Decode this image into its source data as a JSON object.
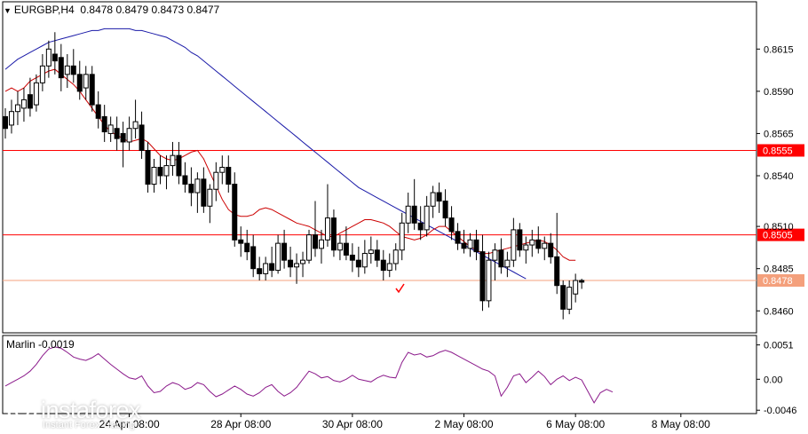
{
  "header": {
    "symbol": "EURGBP,H4",
    "ohlc": "0.8478 0.8479 0.8473 0.8477"
  },
  "indicator": {
    "name": "Marlin",
    "value": "-0.0019",
    "ticks": [
      "0.0051",
      "0.00",
      "-0.0046"
    ],
    "tick_values": [
      0.0051,
      0.0,
      -0.0046
    ],
    "range": [
      -0.0051,
      0.0065
    ]
  },
  "brand": {
    "name": "instaforex",
    "tagline": "Instant Forex Trading"
  },
  "chart_data": {
    "type": "candlestick",
    "symbol": "EURGBP",
    "timeframe": "H4",
    "ylim": [
      0.8447,
      0.8643
    ],
    "y_ticks": [
      "0.8615",
      "0.8590",
      "0.8565",
      "0.8540",
      "0.8510",
      "0.8485",
      "0.8460"
    ],
    "y_tick_values": [
      0.8615,
      0.859,
      0.8565,
      0.854,
      0.851,
      0.8485,
      0.846
    ],
    "x_labels": [
      "24 Apr 08:00",
      "28 Apr 08:00",
      "30 Apr 08:00",
      "2 May 08:00",
      "6 May 08:00",
      "8 May 08:00"
    ],
    "x_label_positions": [
      20,
      38,
      56,
      74,
      92,
      109
    ],
    "levels": [
      {
        "value": 0.8555,
        "label": "0.8555",
        "color": "#ff0000"
      },
      {
        "value": 0.8505,
        "label": "0.8505",
        "color": "#ff0000"
      },
      {
        "value": 0.8478,
        "label": "0.8478",
        "color": "#f4a07c"
      }
    ],
    "colors": {
      "bull": "#ffffff",
      "bear": "#000000",
      "ma_fast": "#cc0000",
      "ma_slow": "#1a1aa8",
      "oscillator": "#8b1a8b",
      "checkmark": "#ff0000"
    },
    "candles": [
      [
        0.8575,
        0.858,
        0.8562,
        0.8568
      ],
      [
        0.857,
        0.8585,
        0.8565,
        0.8578
      ],
      [
        0.8578,
        0.859,
        0.857,
        0.8582
      ],
      [
        0.858,
        0.8592,
        0.8572,
        0.8585
      ],
      [
        0.8588,
        0.8598,
        0.8575,
        0.858
      ],
      [
        0.8582,
        0.86,
        0.8578,
        0.8595
      ],
      [
        0.8595,
        0.8612,
        0.859,
        0.8605
      ],
      [
        0.8605,
        0.862,
        0.8598,
        0.8615
      ],
      [
        0.8612,
        0.8625,
        0.86,
        0.8608
      ],
      [
        0.861,
        0.8618,
        0.859,
        0.8598
      ],
      [
        0.86,
        0.8612,
        0.8592,
        0.8605
      ],
      [
        0.8605,
        0.8615,
        0.8595,
        0.86
      ],
      [
        0.86,
        0.8608,
        0.8585,
        0.859
      ],
      [
        0.8592,
        0.8605,
        0.8585,
        0.86
      ],
      [
        0.86,
        0.8605,
        0.8578,
        0.8582
      ],
      [
        0.8582,
        0.859,
        0.8568,
        0.8574
      ],
      [
        0.8575,
        0.8582,
        0.856,
        0.8566
      ],
      [
        0.8565,
        0.8575,
        0.856,
        0.857
      ],
      [
        0.8568,
        0.8575,
        0.8555,
        0.8562
      ],
      [
        0.8565,
        0.8572,
        0.8545,
        0.856
      ],
      [
        0.856,
        0.8575,
        0.8555,
        0.8568
      ],
      [
        0.8568,
        0.8585,
        0.8562,
        0.8572
      ],
      [
        0.857,
        0.8578,
        0.855,
        0.8555
      ],
      [
        0.8555,
        0.856,
        0.853,
        0.8535
      ],
      [
        0.8535,
        0.855,
        0.853,
        0.8545
      ],
      [
        0.8545,
        0.8552,
        0.8535,
        0.854
      ],
      [
        0.854,
        0.8552,
        0.8532,
        0.8546
      ],
      [
        0.8546,
        0.856,
        0.854,
        0.8552
      ],
      [
        0.8552,
        0.856,
        0.8535,
        0.854
      ],
      [
        0.854,
        0.8548,
        0.853,
        0.8535
      ],
      [
        0.8535,
        0.8545,
        0.8522,
        0.853
      ],
      [
        0.853,
        0.8542,
        0.8518,
        0.8538
      ],
      [
        0.8538,
        0.8545,
        0.8518,
        0.8522
      ],
      [
        0.8522,
        0.8535,
        0.8512,
        0.8532
      ],
      [
        0.8532,
        0.8548,
        0.8525,
        0.8542
      ],
      [
        0.8542,
        0.8552,
        0.8535,
        0.8545
      ],
      [
        0.8545,
        0.8552,
        0.853,
        0.8535
      ],
      [
        0.8535,
        0.8542,
        0.8498,
        0.8502
      ],
      [
        0.8502,
        0.851,
        0.8492,
        0.85
      ],
      [
        0.85,
        0.8508,
        0.849,
        0.8495
      ],
      [
        0.8498,
        0.8505,
        0.848,
        0.8485
      ],
      [
        0.8485,
        0.8492,
        0.8478,
        0.8482
      ],
      [
        0.8482,
        0.8492,
        0.8478,
        0.8488
      ],
      [
        0.8488,
        0.8498,
        0.848,
        0.8484
      ],
      [
        0.8484,
        0.8505,
        0.8482,
        0.85
      ],
      [
        0.85,
        0.8508,
        0.8485,
        0.849
      ],
      [
        0.849,
        0.8498,
        0.848,
        0.8486
      ],
      [
        0.8486,
        0.8494,
        0.8476,
        0.8488
      ],
      [
        0.8488,
        0.8495,
        0.848,
        0.849
      ],
      [
        0.849,
        0.8508,
        0.8488,
        0.8505
      ],
      [
        0.8505,
        0.8525,
        0.8492,
        0.8497
      ],
      [
        0.8497,
        0.8508,
        0.8488,
        0.8502
      ],
      [
        0.8502,
        0.8535,
        0.8498,
        0.8515
      ],
      [
        0.8515,
        0.852,
        0.8492,
        0.8496
      ],
      [
        0.8496,
        0.8505,
        0.849,
        0.85
      ],
      [
        0.85,
        0.851,
        0.849,
        0.8493
      ],
      [
        0.8493,
        0.85,
        0.8483,
        0.849
      ],
      [
        0.849,
        0.8498,
        0.848,
        0.8486
      ],
      [
        0.8486,
        0.8502,
        0.8482,
        0.8494
      ],
      [
        0.8494,
        0.8504,
        0.8488,
        0.8496
      ],
      [
        0.8496,
        0.8502,
        0.8486,
        0.849
      ],
      [
        0.849,
        0.8496,
        0.8478,
        0.8484
      ],
      [
        0.8484,
        0.8494,
        0.848,
        0.8488
      ],
      [
        0.8488,
        0.85,
        0.8484,
        0.8496
      ],
      [
        0.8496,
        0.8518,
        0.849,
        0.8512
      ],
      [
        0.8512,
        0.853,
        0.8506,
        0.8522
      ],
      [
        0.8522,
        0.8538,
        0.8508,
        0.8512
      ],
      [
        0.8512,
        0.8522,
        0.8502,
        0.8508
      ],
      [
        0.8508,
        0.8528,
        0.8504,
        0.8522
      ],
      [
        0.8522,
        0.8534,
        0.8515,
        0.853
      ],
      [
        0.853,
        0.8536,
        0.8518,
        0.8525
      ],
      [
        0.8525,
        0.8532,
        0.851,
        0.8515
      ],
      [
        0.8515,
        0.8522,
        0.8502,
        0.8507
      ],
      [
        0.8507,
        0.8512,
        0.8496,
        0.85
      ],
      [
        0.85,
        0.8508,
        0.8494,
        0.8497
      ],
      [
        0.8497,
        0.8506,
        0.8492,
        0.8502
      ],
      [
        0.8502,
        0.8508,
        0.849,
        0.8495
      ],
      [
        0.8495,
        0.8505,
        0.846,
        0.8466
      ],
      [
        0.8466,
        0.8495,
        0.8462,
        0.849
      ],
      [
        0.849,
        0.85,
        0.8478,
        0.8496
      ],
      [
        0.8496,
        0.8503,
        0.8482,
        0.8486
      ],
      [
        0.8486,
        0.8495,
        0.848,
        0.849
      ],
      [
        0.849,
        0.8515,
        0.8486,
        0.8508
      ],
      [
        0.8508,
        0.8512,
        0.8492,
        0.8496
      ],
      [
        0.8496,
        0.8504,
        0.8488,
        0.8499
      ],
      [
        0.8499,
        0.8508,
        0.8492,
        0.8502
      ],
      [
        0.8502,
        0.851,
        0.8494,
        0.8497
      ],
      [
        0.8497,
        0.8504,
        0.849,
        0.85
      ],
      [
        0.85,
        0.8506,
        0.8488,
        0.8492
      ],
      [
        0.8492,
        0.8518,
        0.847,
        0.8475
      ],
      [
        0.8475,
        0.8478,
        0.8455,
        0.8461
      ],
      [
        0.8461,
        0.8478,
        0.8458,
        0.8474
      ],
      [
        0.847,
        0.8482,
        0.8465,
        0.8478
      ],
      [
        0.8478,
        0.8479,
        0.8473,
        0.8477
      ]
    ],
    "ma_fast": [
      0.859,
      0.8592,
      0.859,
      0.8592,
      0.8596,
      0.8598,
      0.86,
      0.8602,
      0.8603,
      0.86,
      0.8597,
      0.8594,
      0.859,
      0.8585,
      0.858,
      0.8575,
      0.857,
      0.8566,
      0.8564,
      0.8562,
      0.856,
      0.8561,
      0.8562,
      0.856,
      0.8556,
      0.8552,
      0.855,
      0.8549,
      0.855,
      0.8552,
      0.8554,
      0.8555,
      0.855,
      0.8542,
      0.8534,
      0.8526,
      0.852,
      0.8517,
      0.8516,
      0.8516,
      0.8517,
      0.852,
      0.8521,
      0.852,
      0.8518,
      0.8516,
      0.8514,
      0.8512,
      0.8511,
      0.851,
      0.8508,
      0.8506,
      0.8504,
      0.8504,
      0.8506,
      0.8508,
      0.851,
      0.8512,
      0.8514,
      0.8514,
      0.8513,
      0.8512,
      0.851,
      0.8507,
      0.8504,
      0.8503,
      0.8502,
      0.8503,
      0.8505,
      0.8508,
      0.851,
      0.851,
      0.8507,
      0.8504,
      0.8501,
      0.8498,
      0.8496,
      0.8494,
      0.8494,
      0.8495,
      0.8496,
      0.8497,
      0.8498,
      0.8499,
      0.85,
      0.8501,
      0.8502,
      0.8501,
      0.8499,
      0.8496,
      0.8492,
      0.849,
      0.849
    ],
    "ma_slow": [
      0.8603,
      0.8606,
      0.8609,
      0.8611,
      0.8613,
      0.8615,
      0.8617,
      0.8619,
      0.862,
      0.8621,
      0.8622,
      0.8623,
      0.8624,
      0.8625,
      0.8626,
      0.8626,
      0.8627,
      0.8627,
      0.8627,
      0.8627,
      0.8627,
      0.8626,
      0.8626,
      0.8625,
      0.8624,
      0.8623,
      0.8622,
      0.862,
      0.8618,
      0.8616,
      0.8613,
      0.8611,
      0.8608,
      0.8605,
      0.8602,
      0.8599,
      0.8596,
      0.8593,
      0.859,
      0.8587,
      0.8584,
      0.8581,
      0.8578,
      0.8575,
      0.8572,
      0.8569,
      0.8566,
      0.8563,
      0.856,
      0.8557,
      0.8554,
      0.8551,
      0.8548,
      0.8545,
      0.8542,
      0.8539,
      0.8536,
      0.8533,
      0.8531,
      0.8529,
      0.8527,
      0.8525,
      0.8523,
      0.8521,
      0.8519,
      0.8517,
      0.8515,
      0.8513,
      0.8511,
      0.8509,
      0.8507,
      0.8505,
      0.8503,
      0.8501,
      0.8499,
      0.8497,
      0.8495,
      0.8493,
      0.8491,
      0.8489,
      0.8487,
      0.8485,
      0.8483,
      0.8481,
      0.8479
    ],
    "oscillator": [
      -0.001,
      -0.0005,
      0.0,
      0.0005,
      0.0012,
      0.0022,
      0.0035,
      0.0045,
      0.0048,
      0.0046,
      0.004,
      0.0033,
      0.003,
      0.0028,
      0.0032,
      0.0038,
      0.003,
      0.0022,
      0.0015,
      0.0008,
      0.0002,
      0.0,
      0.0005,
      -0.001,
      -0.002,
      -0.0018,
      -0.001,
      -0.0005,
      -0.0008,
      -0.0015,
      -0.0012,
      -0.0005,
      -0.0008,
      -0.0018,
      -0.0026,
      -0.0022,
      -0.0016,
      -0.001,
      -0.0015,
      -0.0022,
      -0.0025,
      -0.002,
      -0.0012,
      -0.0008,
      -0.0018,
      -0.0025,
      -0.002,
      -0.0012,
      0.0,
      0.0012,
      0.0008,
      0.0002,
      0.0004,
      -0.0002,
      -0.0004,
      0.0,
      0.0006,
      0.0,
      -0.0002,
      -0.0004,
      0.0002,
      0.0006,
      0.0003,
      0.0002,
      0.0025,
      0.004,
      0.0036,
      0.0038,
      0.0033,
      0.0035,
      0.004,
      0.0043,
      0.004,
      0.0035,
      0.003,
      0.0025,
      0.002,
      0.0015,
      0.0012,
      0.0005,
      -0.0025,
      -0.0012,
      0.0005,
      0.0008,
      -0.0005,
      0.0003,
      0.0012,
      0.0004,
      -0.0008,
      0.0,
      0.0005,
      -0.0002,
      0.0003,
      -0.0001,
      -0.0018,
      -0.0035,
      -0.002,
      -0.0015,
      -0.0019
    ]
  }
}
